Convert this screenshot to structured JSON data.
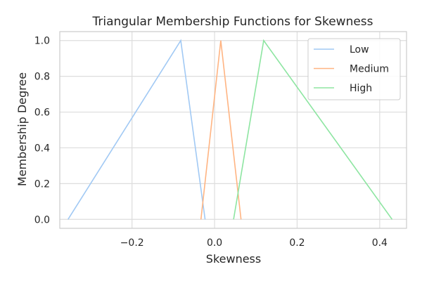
{
  "chart_data": {
    "type": "line",
    "title": "Triangular Membership Functions for Skewness",
    "xlabel": "Skewness",
    "ylabel": "Membership Degree",
    "xlim": [
      -0.375,
      0.465
    ],
    "ylim": [
      -0.05,
      1.05
    ],
    "xticks": [
      -0.2,
      0.0,
      0.2,
      0.4
    ],
    "xtick_labels": [
      "−0.2",
      "0.0",
      "0.2",
      "0.4"
    ],
    "yticks": [
      0.0,
      0.2,
      0.4,
      0.6,
      0.8,
      1.0
    ],
    "ytick_labels": [
      "0.0",
      "0.2",
      "0.4",
      "0.6",
      "0.8",
      "1.0"
    ],
    "grid": true,
    "legend_position": "top-right",
    "series": [
      {
        "name": "Low",
        "color": "#a1c9f4",
        "x": [
          -0.355,
          -0.082,
          -0.023
        ],
        "y": [
          0,
          1,
          0
        ]
      },
      {
        "name": "Medium",
        "color": "#ffb482",
        "x": [
          -0.033,
          0.015,
          0.064
        ],
        "y": [
          0,
          1,
          0
        ]
      },
      {
        "name": "High",
        "color": "#8de5a1",
        "x": [
          0.046,
          0.119,
          0.43
        ],
        "y": [
          0,
          1,
          0
        ]
      }
    ]
  }
}
